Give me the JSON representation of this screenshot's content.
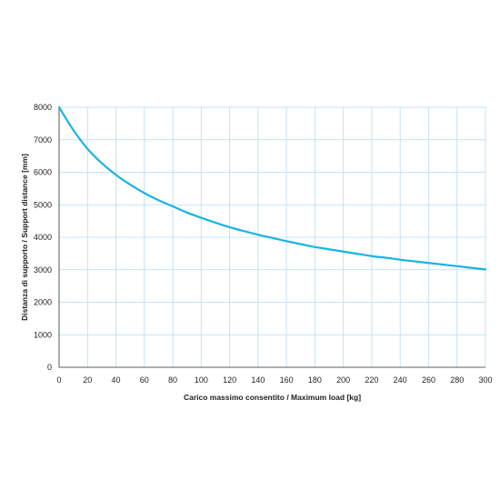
{
  "chart_data": {
    "type": "line",
    "xlabel": "Carico massimo consentito / Maximum load [kg]",
    "ylabel": "Distanza di supporto / Support distance [mm]",
    "xlim": [
      0,
      300
    ],
    "ylim": [
      0,
      8000
    ],
    "x_ticks": [
      0,
      20,
      40,
      60,
      80,
      100,
      120,
      140,
      160,
      180,
      200,
      220,
      240,
      260,
      280,
      300
    ],
    "y_ticks": [
      0,
      1000,
      2000,
      3000,
      4000,
      5000,
      6000,
      7000,
      8000
    ],
    "grid": true,
    "line_color": "#1ab3e6",
    "grid_color": "#b4dcf0",
    "series": [
      {
        "x": [
          0,
          10,
          20,
          30,
          40,
          50,
          60,
          70,
          80,
          90,
          100,
          110,
          120,
          130,
          140,
          150,
          160,
          170,
          180,
          190,
          200,
          210,
          220,
          230,
          240,
          250,
          260,
          270,
          280,
          290,
          300
        ],
        "values": [
          8000,
          7300,
          6720,
          6280,
          5920,
          5620,
          5360,
          5140,
          4950,
          4760,
          4600,
          4450,
          4310,
          4190,
          4080,
          3980,
          3880,
          3790,
          3700,
          3630,
          3560,
          3490,
          3420,
          3370,
          3310,
          3260,
          3210,
          3160,
          3110,
          3060,
          3010
        ]
      }
    ]
  }
}
